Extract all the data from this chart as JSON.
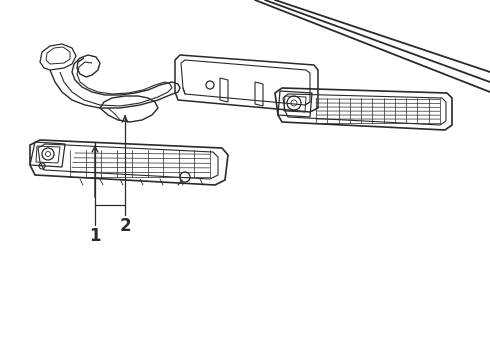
{
  "background_color": "#ffffff",
  "line_color": "#2a2a2a",
  "label1": "1",
  "label2": "2",
  "figsize": [
    4.9,
    3.6
  ],
  "dpi": 100
}
